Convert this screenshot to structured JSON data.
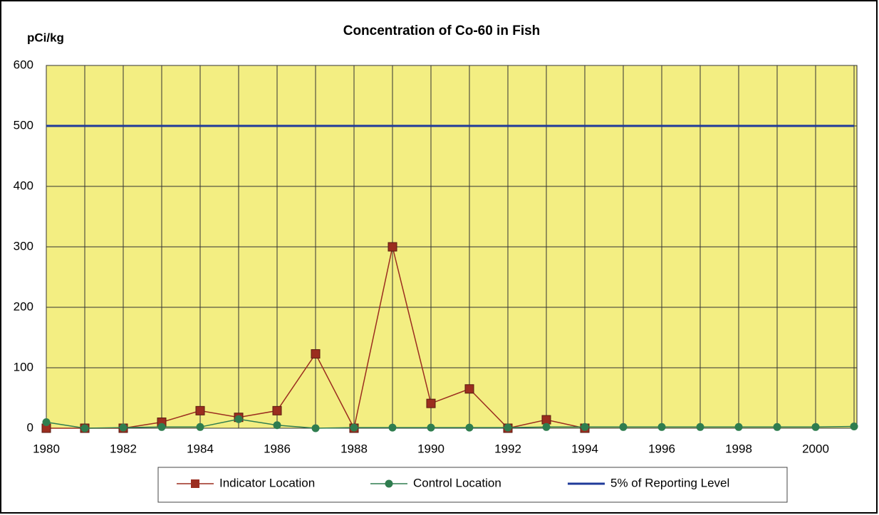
{
  "chart_data": {
    "type": "line",
    "title": "Concentration of Co-60 in Fish",
    "ylabel": "pCi/kg",
    "categories": [
      "1980",
      null,
      "1982",
      null,
      "1984",
      null,
      "1986",
      null,
      "1988",
      null,
      "1990",
      null,
      "1992",
      null,
      "1994",
      null,
      "1996",
      null,
      "1998",
      null,
      "2000",
      null
    ],
    "series": [
      {
        "name": "Indicator Location",
        "color": "#9b2d1f",
        "marker": "square",
        "values": [
          0,
          0,
          0,
          10,
          29,
          18,
          29,
          123,
          0,
          300,
          41,
          65,
          0,
          14,
          0,
          null,
          null,
          null,
          null,
          null,
          null,
          null
        ]
      },
      {
        "name": "Control Location",
        "color": "#2f7d4f",
        "marker": "circle",
        "values": [
          10,
          0,
          1,
          2,
          2,
          15,
          5,
          0,
          1,
          1,
          1,
          1,
          1,
          2,
          2,
          2,
          2,
          2,
          2,
          2,
          2,
          3
        ]
      },
      {
        "name": "5% of Reporting Level",
        "color": "#1f3a9a",
        "marker": "none",
        "values": [
          500,
          500,
          500,
          500,
          500,
          500,
          500,
          500,
          500,
          500,
          500,
          500,
          500,
          500,
          500,
          500,
          500,
          500,
          500,
          500,
          500,
          500
        ]
      }
    ],
    "ylim": [
      0,
      600
    ],
    "yticks": [
      0,
      100,
      200,
      300,
      400,
      500,
      600
    ],
    "grid": true,
    "legend": "bottom"
  }
}
